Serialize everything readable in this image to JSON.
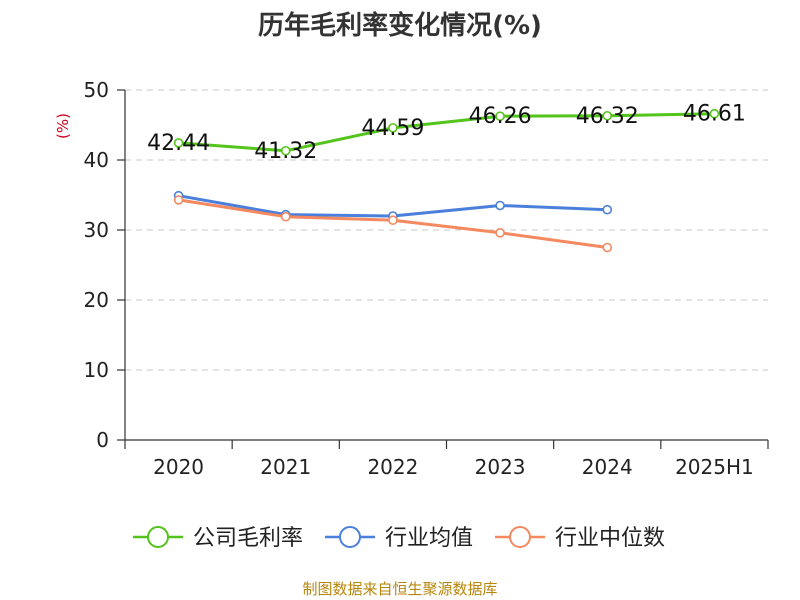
{
  "chart_data": {
    "type": "line",
    "title": "历年毛利率变化情况(%)",
    "ylabel": "(%)",
    "xlabel": "",
    "categories": [
      "2020",
      "2021",
      "2022",
      "2023",
      "2024",
      "2025H1"
    ],
    "ylim": [
      0,
      50
    ],
    "yticks": [
      0,
      10,
      20,
      30,
      40,
      50
    ],
    "grid": true,
    "legend_position": "bottom",
    "series": [
      {
        "name": "公司毛利率",
        "color": "#52c41a",
        "values": [
          42.44,
          41.32,
          44.59,
          46.26,
          46.32,
          46.61
        ],
        "labels": [
          "42.44",
          "41.32",
          "44.59",
          "46.26",
          "46.32",
          "46.61"
        ]
      },
      {
        "name": "行业均值",
        "color": "#4a7fdb",
        "values": [
          34.9,
          32.2,
          32.0,
          33.5,
          32.9,
          null
        ]
      },
      {
        "name": "行业中位数",
        "color": "#f4895f",
        "values": [
          34.3,
          31.9,
          31.4,
          29.6,
          27.5,
          null
        ]
      }
    ],
    "source": "制图数据来自恒生聚源数据库"
  }
}
